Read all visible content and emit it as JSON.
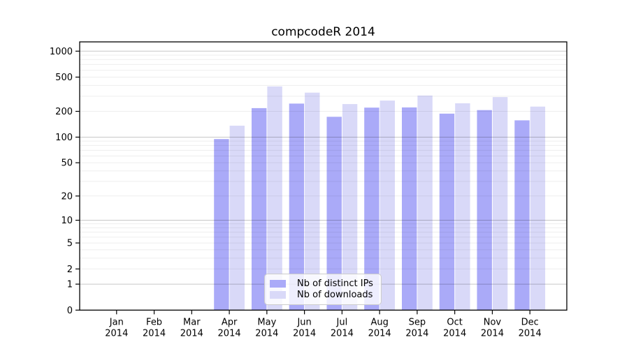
{
  "chart_data": {
    "type": "bar",
    "title": "compcodeR 2014",
    "categories": [
      "Jan 2014",
      "Feb 2014",
      "Mar 2014",
      "Apr 2014",
      "May 2014",
      "Jun 2014",
      "Jul 2014",
      "Aug 2014",
      "Sep 2014",
      "Oct 2014",
      "Nov 2014",
      "Dec 2014"
    ],
    "series": [
      {
        "name": "Nb of distinct IPs",
        "color": "#aaaaf8",
        "values": [
          0,
          0,
          0,
          95,
          218,
          246,
          173,
          221,
          222,
          188,
          207,
          157
        ]
      },
      {
        "name": "Nb of downloads",
        "color": "#d9d9f8",
        "values": [
          0,
          0,
          0,
          136,
          390,
          330,
          243,
          267,
          305,
          248,
          293,
          227
        ]
      }
    ],
    "xlabel": "",
    "ylabel": "",
    "y_scale": "log1p",
    "y_ticks": [
      0,
      1,
      2,
      5,
      10,
      20,
      50,
      100,
      200,
      500,
      1000
    ],
    "ylim": [
      0,
      1280
    ],
    "grid": "horizontal log minor+major",
    "legend_position": "inside-bottom-center"
  }
}
